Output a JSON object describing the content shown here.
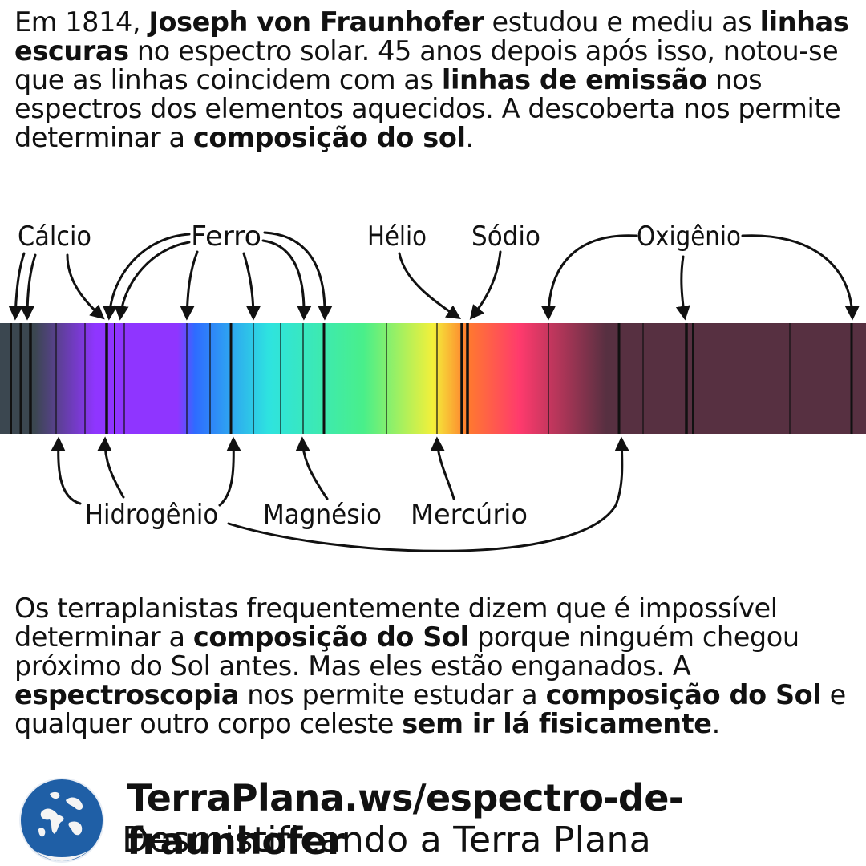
{
  "intro": {
    "t1": "Em 1814, ",
    "b1": "Joseph von Fraunhofer",
    "t2": " estudou e mediu as ",
    "b2": "linhas escuras",
    "t3": " no espectro solar. 45 anos depois após isso, notou-se que as linhas coincidem com as ",
    "b3": "linhas de emissão",
    "t4": " nos espectros dos elementos aquecidos. A descoberta nos permite determinar a ",
    "b4": "composição do sol",
    "t5": "."
  },
  "spectrum": {
    "labels_top": {
      "calcium": "Cálcio",
      "iron": "Ferro",
      "helium": "Hélio",
      "sodium": "Sódio",
      "oxygen": "Oxigênio"
    },
    "labels_bottom": {
      "hydrogen": "Hidrogênio",
      "magnesium": "Magnésio",
      "mercury": "Mercúrio"
    },
    "colors": {
      "band_start": "#3b4750",
      "violet": "#8f35ff",
      "blue": "#2e6bff",
      "cyan": "#2ee3e0",
      "green": "#49ef8a",
      "yellow": "#f4f03a",
      "orange": "#ff7a2e",
      "red": "#ff3a6d",
      "band_end": "#573041"
    }
  },
  "outro": {
    "t1": "Os terraplanistas frequentemente dizem que é impossível determinar a ",
    "b1": "composição do Sol",
    "t2": " porque ninguém chegou próximo do Sol antes. Mas eles estão enganados. A ",
    "b2": "espectroscopia",
    "t3": " nos permite estudar a ",
    "b3": "composição do Sol",
    "t4": " e qualquer outro corpo celeste ",
    "b4": "sem ir lá fisicamente",
    "t5": "."
  },
  "footer": {
    "logo_icon": "flat-earth-map-icon",
    "url": "TerraPlana.ws/espectro-de-fraunhofer",
    "tagline": "Desmistificando a Terra Plana"
  }
}
